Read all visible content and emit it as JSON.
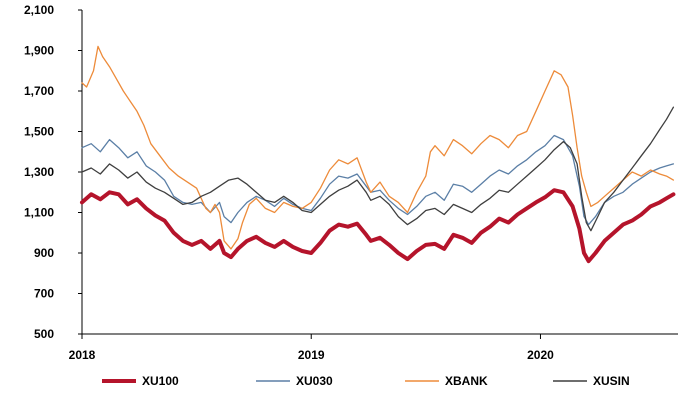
{
  "chart_data": {
    "type": "line",
    "title": "",
    "xlabel": "",
    "ylabel": "",
    "ylim": [
      500,
      2100
    ],
    "yticks": [
      "500",
      "700",
      "900",
      "1,100",
      "1,300",
      "1,500",
      "1,700",
      "1,900",
      "2,100"
    ],
    "xlim": [
      2018.0,
      2020.6
    ],
    "xticks": [
      {
        "label": "2018",
        "value": 2018
      },
      {
        "label": "2019",
        "value": 2019
      },
      {
        "label": "2020",
        "value": 2020
      }
    ],
    "grid": false,
    "legend_position": "bottom",
    "series": [
      {
        "name": "XU100",
        "color": "#B5142B",
        "points": [
          [
            2018.0,
            1150
          ],
          [
            2018.04,
            1190
          ],
          [
            2018.08,
            1165
          ],
          [
            2018.12,
            1200
          ],
          [
            2018.16,
            1190
          ],
          [
            2018.2,
            1140
          ],
          [
            2018.24,
            1165
          ],
          [
            2018.28,
            1120
          ],
          [
            2018.32,
            1085
          ],
          [
            2018.36,
            1060
          ],
          [
            2018.4,
            1000
          ],
          [
            2018.44,
            960
          ],
          [
            2018.48,
            940
          ],
          [
            2018.52,
            960
          ],
          [
            2018.56,
            920
          ],
          [
            2018.6,
            960
          ],
          [
            2018.62,
            900
          ],
          [
            2018.65,
            880
          ],
          [
            2018.68,
            920
          ],
          [
            2018.72,
            960
          ],
          [
            2018.76,
            980
          ],
          [
            2018.8,
            950
          ],
          [
            2018.84,
            930
          ],
          [
            2018.88,
            960
          ],
          [
            2018.92,
            930
          ],
          [
            2018.96,
            910
          ],
          [
            2019.0,
            900
          ],
          [
            2019.04,
            950
          ],
          [
            2019.08,
            1010
          ],
          [
            2019.12,
            1040
          ],
          [
            2019.16,
            1030
          ],
          [
            2019.2,
            1045
          ],
          [
            2019.24,
            990
          ],
          [
            2019.26,
            960
          ],
          [
            2019.3,
            975
          ],
          [
            2019.34,
            940
          ],
          [
            2019.38,
            900
          ],
          [
            2019.42,
            870
          ],
          [
            2019.46,
            910
          ],
          [
            2019.5,
            940
          ],
          [
            2019.54,
            945
          ],
          [
            2019.58,
            920
          ],
          [
            2019.62,
            990
          ],
          [
            2019.66,
            975
          ],
          [
            2019.7,
            950
          ],
          [
            2019.74,
            1000
          ],
          [
            2019.78,
            1030
          ],
          [
            2019.82,
            1070
          ],
          [
            2019.86,
            1050
          ],
          [
            2019.9,
            1090
          ],
          [
            2019.94,
            1120
          ],
          [
            2019.98,
            1150
          ],
          [
            2020.02,
            1175
          ],
          [
            2020.06,
            1210
          ],
          [
            2020.1,
            1200
          ],
          [
            2020.14,
            1130
          ],
          [
            2020.17,
            1020
          ],
          [
            2020.19,
            900
          ],
          [
            2020.21,
            860
          ],
          [
            2020.24,
            900
          ],
          [
            2020.28,
            960
          ],
          [
            2020.32,
            1000
          ],
          [
            2020.36,
            1040
          ],
          [
            2020.4,
            1060
          ],
          [
            2020.44,
            1090
          ],
          [
            2020.48,
            1130
          ],
          [
            2020.52,
            1150
          ],
          [
            2020.55,
            1170
          ],
          [
            2020.58,
            1190
          ]
        ]
      },
      {
        "name": "XU030",
        "color": "#5B7FA6",
        "points": [
          [
            2018.0,
            1420
          ],
          [
            2018.04,
            1440
          ],
          [
            2018.08,
            1400
          ],
          [
            2018.12,
            1460
          ],
          [
            2018.16,
            1420
          ],
          [
            2018.2,
            1370
          ],
          [
            2018.24,
            1400
          ],
          [
            2018.28,
            1330
          ],
          [
            2018.32,
            1300
          ],
          [
            2018.36,
            1260
          ],
          [
            2018.4,
            1180
          ],
          [
            2018.44,
            1150
          ],
          [
            2018.48,
            1140
          ],
          [
            2018.52,
            1150
          ],
          [
            2018.56,
            1100
          ],
          [
            2018.6,
            1150
          ],
          [
            2018.62,
            1080
          ],
          [
            2018.65,
            1050
          ],
          [
            2018.68,
            1100
          ],
          [
            2018.72,
            1150
          ],
          [
            2018.76,
            1180
          ],
          [
            2018.8,
            1160
          ],
          [
            2018.84,
            1130
          ],
          [
            2018.88,
            1170
          ],
          [
            2018.92,
            1140
          ],
          [
            2018.96,
            1120
          ],
          [
            2019.0,
            1110
          ],
          [
            2019.04,
            1170
          ],
          [
            2019.08,
            1240
          ],
          [
            2019.12,
            1280
          ],
          [
            2019.16,
            1270
          ],
          [
            2019.2,
            1290
          ],
          [
            2019.24,
            1230
          ],
          [
            2019.26,
            1200
          ],
          [
            2019.3,
            1210
          ],
          [
            2019.34,
            1160
          ],
          [
            2019.38,
            1120
          ],
          [
            2019.42,
            1090
          ],
          [
            2019.46,
            1130
          ],
          [
            2019.5,
            1180
          ],
          [
            2019.54,
            1200
          ],
          [
            2019.58,
            1160
          ],
          [
            2019.62,
            1240
          ],
          [
            2019.66,
            1230
          ],
          [
            2019.7,
            1200
          ],
          [
            2019.74,
            1240
          ],
          [
            2019.78,
            1280
          ],
          [
            2019.82,
            1310
          ],
          [
            2019.86,
            1290
          ],
          [
            2019.9,
            1330
          ],
          [
            2019.94,
            1360
          ],
          [
            2019.98,
            1400
          ],
          [
            2020.02,
            1430
          ],
          [
            2020.06,
            1480
          ],
          [
            2020.1,
            1460
          ],
          [
            2020.14,
            1380
          ],
          [
            2020.17,
            1230
          ],
          [
            2020.19,
            1080
          ],
          [
            2020.21,
            1040
          ],
          [
            2020.24,
            1080
          ],
          [
            2020.28,
            1150
          ],
          [
            2020.32,
            1180
          ],
          [
            2020.36,
            1200
          ],
          [
            2020.4,
            1240
          ],
          [
            2020.44,
            1270
          ],
          [
            2020.48,
            1300
          ],
          [
            2020.52,
            1320
          ],
          [
            2020.55,
            1330
          ],
          [
            2020.58,
            1340
          ]
        ]
      },
      {
        "name": "XBANK",
        "color": "#ED8B3A",
        "points": [
          [
            2018.0,
            1740
          ],
          [
            2018.02,
            1720
          ],
          [
            2018.05,
            1800
          ],
          [
            2018.07,
            1920
          ],
          [
            2018.09,
            1870
          ],
          [
            2018.12,
            1820
          ],
          [
            2018.15,
            1760
          ],
          [
            2018.18,
            1700
          ],
          [
            2018.21,
            1650
          ],
          [
            2018.24,
            1600
          ],
          [
            2018.27,
            1530
          ],
          [
            2018.3,
            1440
          ],
          [
            2018.34,
            1380
          ],
          [
            2018.38,
            1320
          ],
          [
            2018.42,
            1280
          ],
          [
            2018.46,
            1250
          ],
          [
            2018.5,
            1220
          ],
          [
            2018.52,
            1170
          ],
          [
            2018.54,
            1120
          ],
          [
            2018.56,
            1100
          ],
          [
            2018.58,
            1140
          ],
          [
            2018.6,
            1100
          ],
          [
            2018.62,
            960
          ],
          [
            2018.65,
            920
          ],
          [
            2018.68,
            970
          ],
          [
            2018.7,
            1050
          ],
          [
            2018.73,
            1140
          ],
          [
            2018.76,
            1170
          ],
          [
            2018.8,
            1120
          ],
          [
            2018.84,
            1100
          ],
          [
            2018.88,
            1150
          ],
          [
            2018.92,
            1130
          ],
          [
            2018.96,
            1120
          ],
          [
            2019.0,
            1150
          ],
          [
            2019.04,
            1220
          ],
          [
            2019.08,
            1310
          ],
          [
            2019.12,
            1360
          ],
          [
            2019.16,
            1340
          ],
          [
            2019.2,
            1370
          ],
          [
            2019.24,
            1250
          ],
          [
            2019.26,
            1200
          ],
          [
            2019.3,
            1250
          ],
          [
            2019.34,
            1180
          ],
          [
            2019.38,
            1150
          ],
          [
            2019.42,
            1100
          ],
          [
            2019.46,
            1200
          ],
          [
            2019.5,
            1280
          ],
          [
            2019.52,
            1400
          ],
          [
            2019.54,
            1430
          ],
          [
            2019.58,
            1380
          ],
          [
            2019.62,
            1460
          ],
          [
            2019.66,
            1430
          ],
          [
            2019.7,
            1390
          ],
          [
            2019.74,
            1440
          ],
          [
            2019.78,
            1480
          ],
          [
            2019.82,
            1460
          ],
          [
            2019.86,
            1420
          ],
          [
            2019.9,
            1480
          ],
          [
            2019.94,
            1500
          ],
          [
            2019.98,
            1600
          ],
          [
            2020.02,
            1700
          ],
          [
            2020.06,
            1800
          ],
          [
            2020.09,
            1780
          ],
          [
            2020.12,
            1720
          ],
          [
            2020.14,
            1580
          ],
          [
            2020.16,
            1420
          ],
          [
            2020.18,
            1280
          ],
          [
            2020.2,
            1200
          ],
          [
            2020.22,
            1130
          ],
          [
            2020.25,
            1150
          ],
          [
            2020.28,
            1180
          ],
          [
            2020.32,
            1220
          ],
          [
            2020.36,
            1260
          ],
          [
            2020.4,
            1300
          ],
          [
            2020.44,
            1280
          ],
          [
            2020.48,
            1310
          ],
          [
            2020.52,
            1290
          ],
          [
            2020.55,
            1280
          ],
          [
            2020.58,
            1260
          ]
        ]
      },
      {
        "name": "XUSIN",
        "color": "#3F3F3F",
        "points": [
          [
            2018.0,
            1300
          ],
          [
            2018.04,
            1320
          ],
          [
            2018.08,
            1290
          ],
          [
            2018.12,
            1340
          ],
          [
            2018.16,
            1310
          ],
          [
            2018.2,
            1270
          ],
          [
            2018.24,
            1300
          ],
          [
            2018.28,
            1250
          ],
          [
            2018.32,
            1220
          ],
          [
            2018.36,
            1200
          ],
          [
            2018.4,
            1170
          ],
          [
            2018.44,
            1140
          ],
          [
            2018.48,
            1150
          ],
          [
            2018.52,
            1180
          ],
          [
            2018.56,
            1200
          ],
          [
            2018.6,
            1230
          ],
          [
            2018.64,
            1260
          ],
          [
            2018.68,
            1270
          ],
          [
            2018.72,
            1240
          ],
          [
            2018.76,
            1200
          ],
          [
            2018.8,
            1160
          ],
          [
            2018.84,
            1150
          ],
          [
            2018.88,
            1180
          ],
          [
            2018.92,
            1150
          ],
          [
            2018.96,
            1110
          ],
          [
            2019.0,
            1100
          ],
          [
            2019.04,
            1140
          ],
          [
            2019.08,
            1180
          ],
          [
            2019.12,
            1210
          ],
          [
            2019.16,
            1230
          ],
          [
            2019.2,
            1260
          ],
          [
            2019.24,
            1200
          ],
          [
            2019.26,
            1160
          ],
          [
            2019.3,
            1180
          ],
          [
            2019.34,
            1140
          ],
          [
            2019.38,
            1080
          ],
          [
            2019.42,
            1040
          ],
          [
            2019.46,
            1070
          ],
          [
            2019.5,
            1110
          ],
          [
            2019.54,
            1120
          ],
          [
            2019.58,
            1090
          ],
          [
            2019.62,
            1140
          ],
          [
            2019.66,
            1120
          ],
          [
            2019.7,
            1100
          ],
          [
            2019.74,
            1140
          ],
          [
            2019.78,
            1170
          ],
          [
            2019.82,
            1210
          ],
          [
            2019.86,
            1200
          ],
          [
            2019.9,
            1240
          ],
          [
            2019.94,
            1280
          ],
          [
            2019.98,
            1320
          ],
          [
            2020.02,
            1360
          ],
          [
            2020.06,
            1410
          ],
          [
            2020.1,
            1450
          ],
          [
            2020.13,
            1420
          ],
          [
            2020.16,
            1340
          ],
          [
            2020.18,
            1180
          ],
          [
            2020.2,
            1050
          ],
          [
            2020.22,
            1010
          ],
          [
            2020.25,
            1080
          ],
          [
            2020.28,
            1150
          ],
          [
            2020.32,
            1200
          ],
          [
            2020.36,
            1260
          ],
          [
            2020.4,
            1320
          ],
          [
            2020.44,
            1380
          ],
          [
            2020.48,
            1440
          ],
          [
            2020.52,
            1510
          ],
          [
            2020.55,
            1560
          ],
          [
            2020.58,
            1620
          ]
        ]
      }
    ]
  }
}
